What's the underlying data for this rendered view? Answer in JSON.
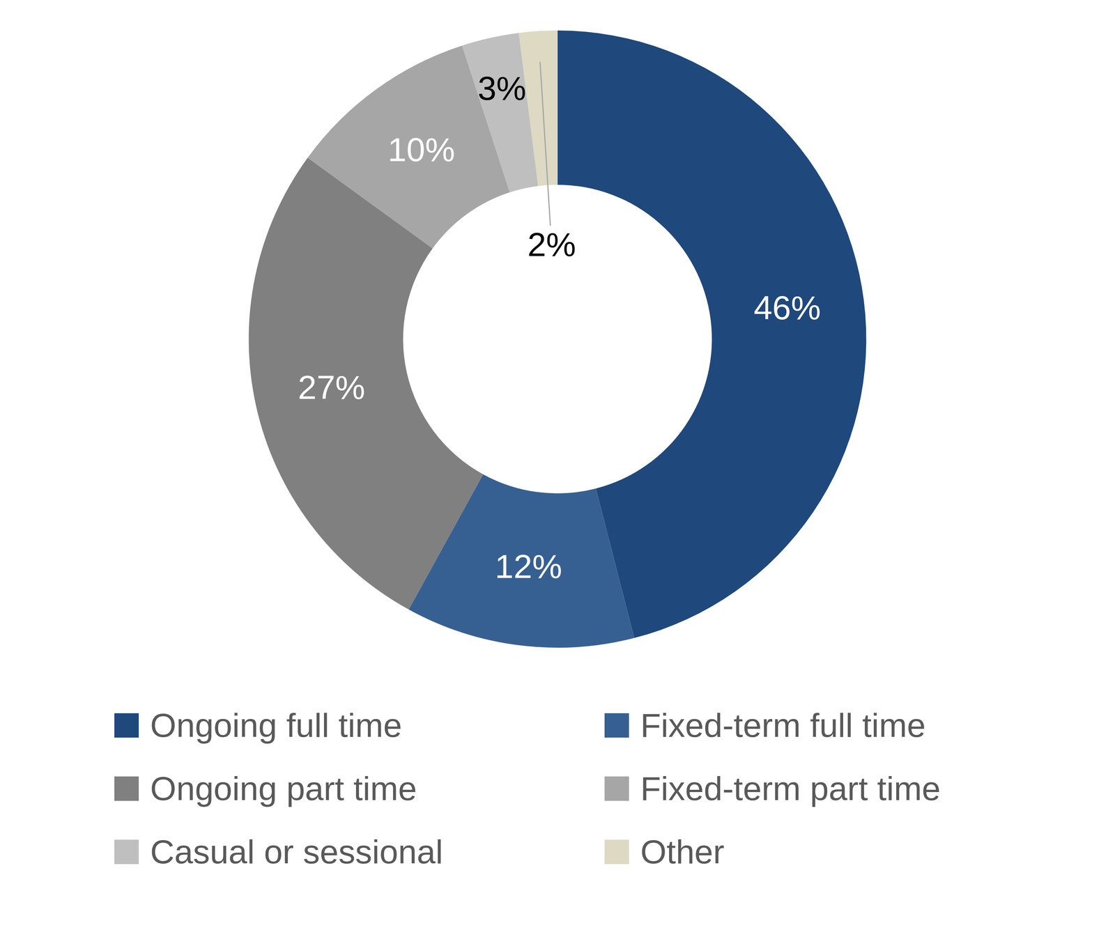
{
  "chart_data": {
    "type": "doughnut",
    "categories": [
      "Ongoing full time",
      "Fixed-term full time",
      "Ongoing part time",
      "Fixed-term part time",
      "Casual or sessional",
      "Other"
    ],
    "values": [
      46,
      12,
      27,
      10,
      3,
      2
    ],
    "value_labels": [
      "46%",
      "12%",
      "27%",
      "10%",
      "3%",
      "2%"
    ],
    "colors": [
      "#1f487c",
      "#376092",
      "#808080",
      "#a6a6a6",
      "#bfbfbf",
      "#ddd9c3"
    ],
    "data_labels": true,
    "legend": "bottom"
  }
}
